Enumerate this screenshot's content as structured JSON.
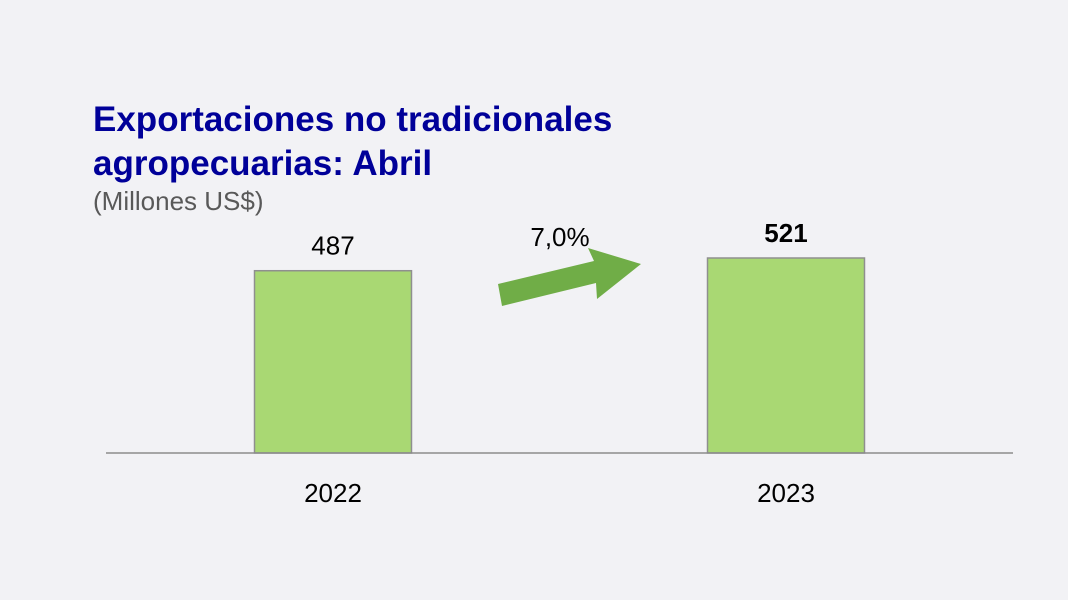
{
  "chart_data": {
    "type": "bar",
    "title_line1": "Exportaciones no tradicionales",
    "title_line2": "agropecuarias: Abril",
    "subtitle": "(Millones US$)",
    "categories": [
      "2022",
      "2023"
    ],
    "values": [
      487,
      521
    ],
    "value_labels": [
      "487",
      "521"
    ],
    "growth_label": "7,0%",
    "ylim": [
      0,
      521
    ],
    "grid": false,
    "legend": "none",
    "colors": {
      "bar_fill": "#a9d873",
      "bar_stroke": "#8f8f8f",
      "arrow": "#70ad47",
      "axis": "#8c8c8c",
      "title": "#000099",
      "subtitle": "#595959",
      "text": "#000000"
    }
  }
}
